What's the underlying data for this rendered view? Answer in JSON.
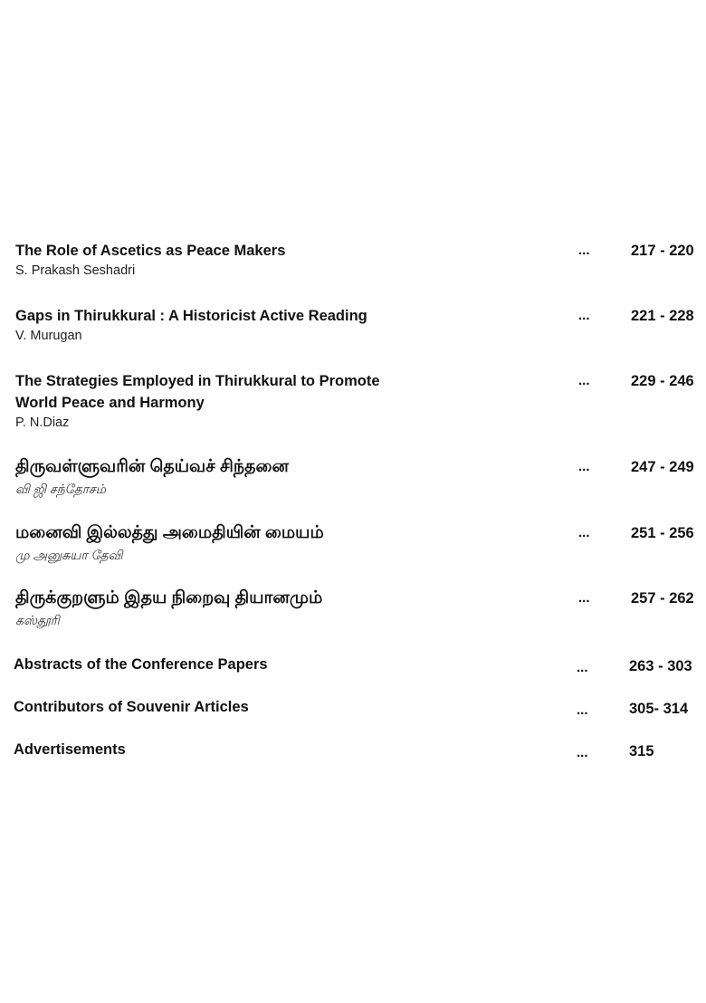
{
  "entries": [
    {
      "title": "The Role of Ascetics as Peace Makers",
      "author": "S. Prakash Seshadri",
      "dots": "...",
      "pages": "217 - 220"
    },
    {
      "title": "Gaps in Thirukkural : A Historicist Active Reading",
      "author": "V. Murugan",
      "dots": "...",
      "pages": "221 - 228"
    },
    {
      "title": "The Strategies Employed in Thirukkural to Promote World Peace and Harmony",
      "author": "P. N.Diaz",
      "dots": "...",
      "pages": "229 - 246"
    },
    {
      "title": "திருவள்ளுவரின் தெய்வச் சிந்தனை",
      "author": "வி ஜி சந்தோசம்",
      "dots": "...",
      "pages": "247 - 249"
    },
    {
      "title": "மனைவி இல்லத்து அமைதியின் மையம்",
      "author": "மு அனுசுயா தேவி",
      "dots": "...",
      "pages": "251 - 256"
    },
    {
      "title": "திருக்குறளும் இதய நிறைவு தியானமும்",
      "author": "கஸ்தூரி",
      "dots": "...",
      "pages": "257 - 262"
    },
    {
      "title": "Abstracts of the Conference Papers",
      "dots": "...",
      "pages": "263 - 303"
    },
    {
      "title": "Contributors of Souvenir Articles",
      "dots": "...",
      "pages": "305- 314"
    },
    {
      "title": "Advertisements",
      "dots": "...",
      "pages": "315"
    }
  ]
}
